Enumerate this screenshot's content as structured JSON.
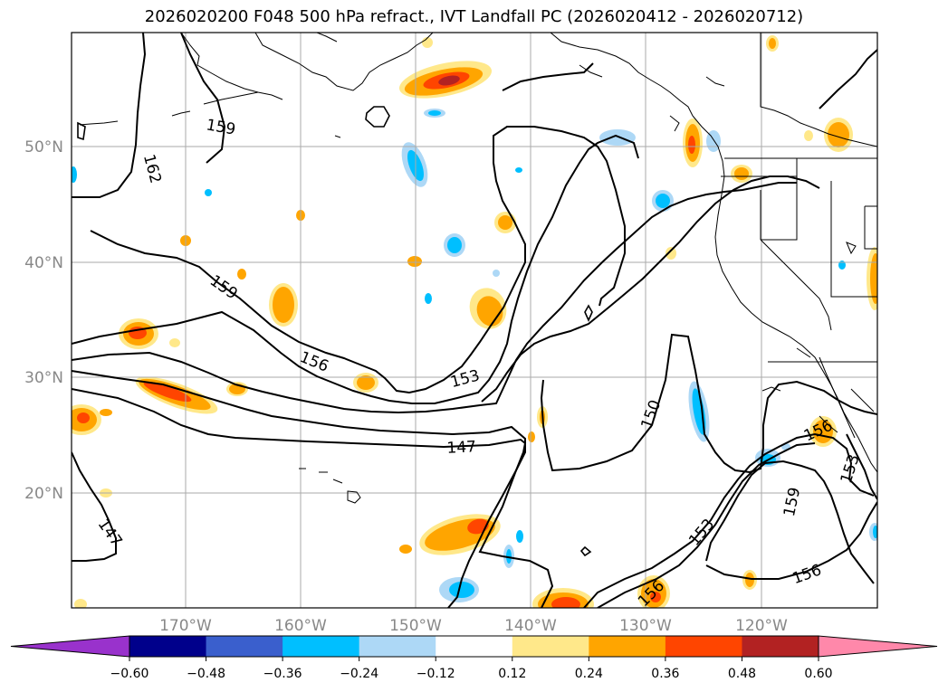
{
  "title": "2026020200 F048 500 hPa refract., IVT Landfall PC (2026020412 - 2026020712)",
  "lat_labels": [
    "50°N",
    "40°N",
    "30°N",
    "20°N"
  ],
  "lon_labels": [
    "170°W",
    "160°W",
    "150°W",
    "140°W",
    "130°W",
    "120°W"
  ],
  "contour_labels": [
    "159",
    "162",
    "159",
    "156",
    "153",
    "150",
    "147",
    "147",
    "153",
    "156",
    "159",
    "156",
    "156",
    "153"
  ],
  "colorbar": {
    "ticks": [
      "−0.60",
      "−0.48",
      "−0.36",
      "−0.24",
      "−0.12",
      "0.12",
      "0.24",
      "0.36",
      "0.48",
      "0.60"
    ],
    "colors": [
      "#9932cc",
      "#00008b",
      "#3a5fcd",
      "#00bfff",
      "#add8f6",
      "#ffffff",
      "#ffe88a",
      "#ffa500",
      "#ff4500",
      "#b22222",
      "#ff88aa"
    ]
  },
  "colors": {
    "coast": "#000000",
    "contour": "#000000",
    "grid": "#aaaaaa",
    "pos_light": "#ffe88a",
    "pos_mid": "#ffa500",
    "pos_high": "#ff4500",
    "pos_max": "#b22222",
    "neg_light": "#add8f6",
    "neg_mid": "#00bfff"
  }
}
